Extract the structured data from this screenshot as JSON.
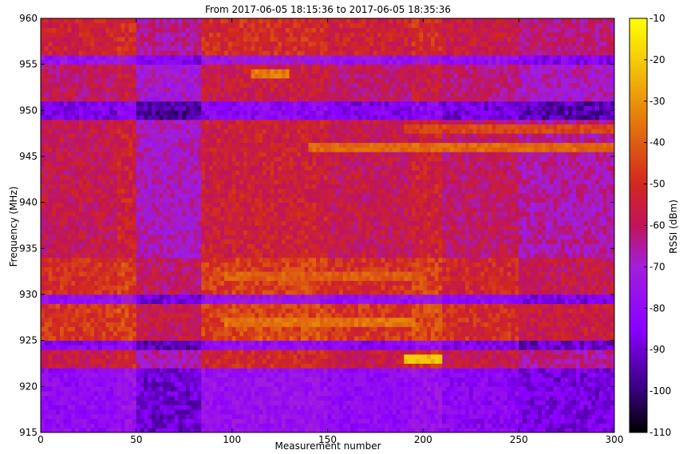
{
  "chart_data": {
    "type": "heatmap",
    "title": "From 2017-06-05 18:15:36 to 2017-06-05 18:35:36",
    "xlabel": "Measurement number",
    "ylabel": "Frequency (MHz)",
    "colorbar_label": "RSSI (dBm)",
    "xlim": [
      0,
      300
    ],
    "ylim": [
      915,
      960
    ],
    "clim": [
      -110,
      -10
    ],
    "x_ticks": [
      0,
      50,
      100,
      150,
      200,
      250,
      300
    ],
    "y_ticks": [
      915,
      920,
      925,
      930,
      935,
      940,
      945,
      950,
      955,
      960
    ],
    "c_ticks": [
      -10,
      -20,
      -30,
      -40,
      -50,
      -60,
      -70,
      -80,
      -90,
      -100,
      -110
    ],
    "colormap": "gnuplot",
    "grid": false,
    "frequency_bands_mhz": [
      {
        "range": [
          915,
          922
        ],
        "rssi_dbm": -82
      },
      {
        "range": [
          922,
          924
        ],
        "rssi_dbm": -58
      },
      {
        "range": [
          924,
          925
        ],
        "rssi_dbm": -85
      },
      {
        "range": [
          925,
          929
        ],
        "rssi_dbm": -50
      },
      {
        "range": [
          929,
          930
        ],
        "rssi_dbm": -80
      },
      {
        "range": [
          930,
          934
        ],
        "rssi_dbm": -52
      },
      {
        "range": [
          934,
          949
        ],
        "rssi_dbm": -60
      },
      {
        "range": [
          949,
          951
        ],
        "rssi_dbm": -88
      },
      {
        "range": [
          951,
          955
        ],
        "rssi_dbm": -62
      },
      {
        "range": [
          955,
          956
        ],
        "rssi_dbm": -78
      },
      {
        "range": [
          956,
          960
        ],
        "rssi_dbm": -56
      }
    ],
    "measurement_bands": [
      {
        "range": [
          0,
          40
        ],
        "rssi_offset_db": 2
      },
      {
        "range": [
          40,
          50
        ],
        "rssi_offset_db": 6
      },
      {
        "range": [
          50,
          85
        ],
        "rssi_offset_db": -8
      },
      {
        "range": [
          85,
          100
        ],
        "rssi_offset_db": 5
      },
      {
        "range": [
          100,
          150
        ],
        "rssi_offset_db": 6
      },
      {
        "range": [
          150,
          195
        ],
        "rssi_offset_db": 2
      },
      {
        "range": [
          195,
          210
        ],
        "rssi_offset_db": 6
      },
      {
        "range": [
          210,
          250
        ],
        "rssi_offset_db": 0
      },
      {
        "range": [
          250,
          300
        ],
        "rssi_offset_db": -6
      }
    ],
    "hot_spots": [
      {
        "freq_mhz": 923,
        "measurement": [
          190,
          210
        ],
        "rssi_dbm": -22
      },
      {
        "freq_mhz": 946,
        "measurement": [
          140,
          300
        ],
        "rssi_dbm": -38
      },
      {
        "freq_mhz": 948,
        "measurement": [
          190,
          300
        ],
        "rssi_dbm": -45
      },
      {
        "freq_mhz": 954,
        "measurement": [
          110,
          130
        ],
        "rssi_dbm": -35
      },
      {
        "freq_mhz": 927,
        "measurement": [
          95,
          195
        ],
        "rssi_dbm": -36
      },
      {
        "freq_mhz": 932,
        "measurement": [
          95,
          195
        ],
        "rssi_dbm": -40
      }
    ]
  }
}
